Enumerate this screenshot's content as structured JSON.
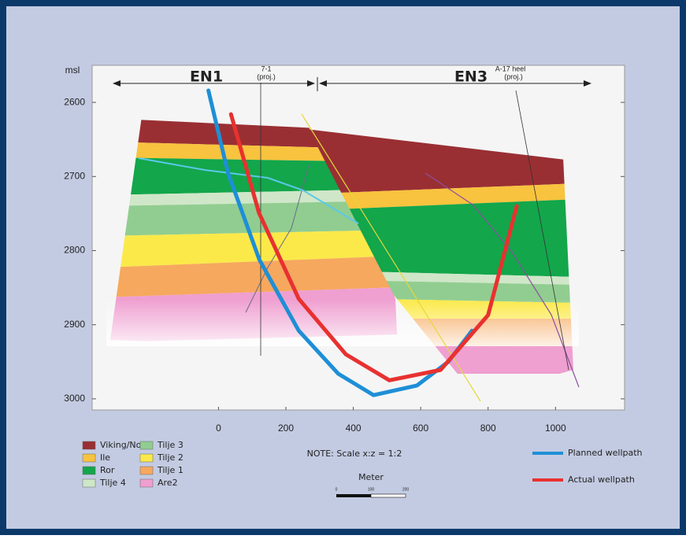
{
  "chart_data": {
    "type": "line",
    "y_axis_label": "msl",
    "xlim": [
      -375,
      1205
    ],
    "ylim": [
      2550,
      3015
    ],
    "y_inverted": true,
    "xticks": [
      0,
      200,
      400,
      600,
      800,
      1000
    ],
    "yticks": [
      2600,
      2700,
      2800,
      2900,
      3000
    ],
    "zones": [
      "EN1",
      "EN3"
    ],
    "wells": [
      {
        "name": "7-1",
        "note": "(proj.)"
      },
      {
        "name": "A-17 heel",
        "note": "(proj.)"
      }
    ],
    "note": "NOTE: Scale x:z = 1:2",
    "scale_bar": {
      "title": "Meter",
      "labels": [
        "0",
        "100",
        "200"
      ]
    },
    "layers": [
      {
        "name": "Viking/Not",
        "color": "#9a2f33"
      },
      {
        "name": "Ile",
        "color": "#f8c33e"
      },
      {
        "name": "Ror",
        "color": "#13a64b"
      },
      {
        "name": "Tilje 4",
        "color": "#cfe7c8"
      },
      {
        "name": "Tilje 3",
        "color": "#91cd90"
      },
      {
        "name": "Tilje 2",
        "color": "#fbe94a"
      },
      {
        "name": "Tilje 1",
        "color": "#f6a85e"
      },
      {
        "name": "Are2",
        "color": "#ef9fd0"
      }
    ],
    "series": [
      {
        "name": "Planned wellpath",
        "color": "#1e8fd6",
        "x": [
          -30,
          28,
          121,
          238,
          355,
          460,
          589,
          682,
          752
        ],
        "values": [
          2584,
          2695,
          2812,
          2908,
          2966,
          2995,
          2982,
          2950,
          2908
        ]
      },
      {
        "name": "Actual wellpath",
        "color": "#e8312f",
        "x": [
          37,
          120,
          238,
          378,
          507,
          659,
          800,
          885
        ],
        "values": [
          2616,
          2749,
          2865,
          2940,
          2975,
          2961,
          2887,
          2740
        ]
      }
    ]
  }
}
